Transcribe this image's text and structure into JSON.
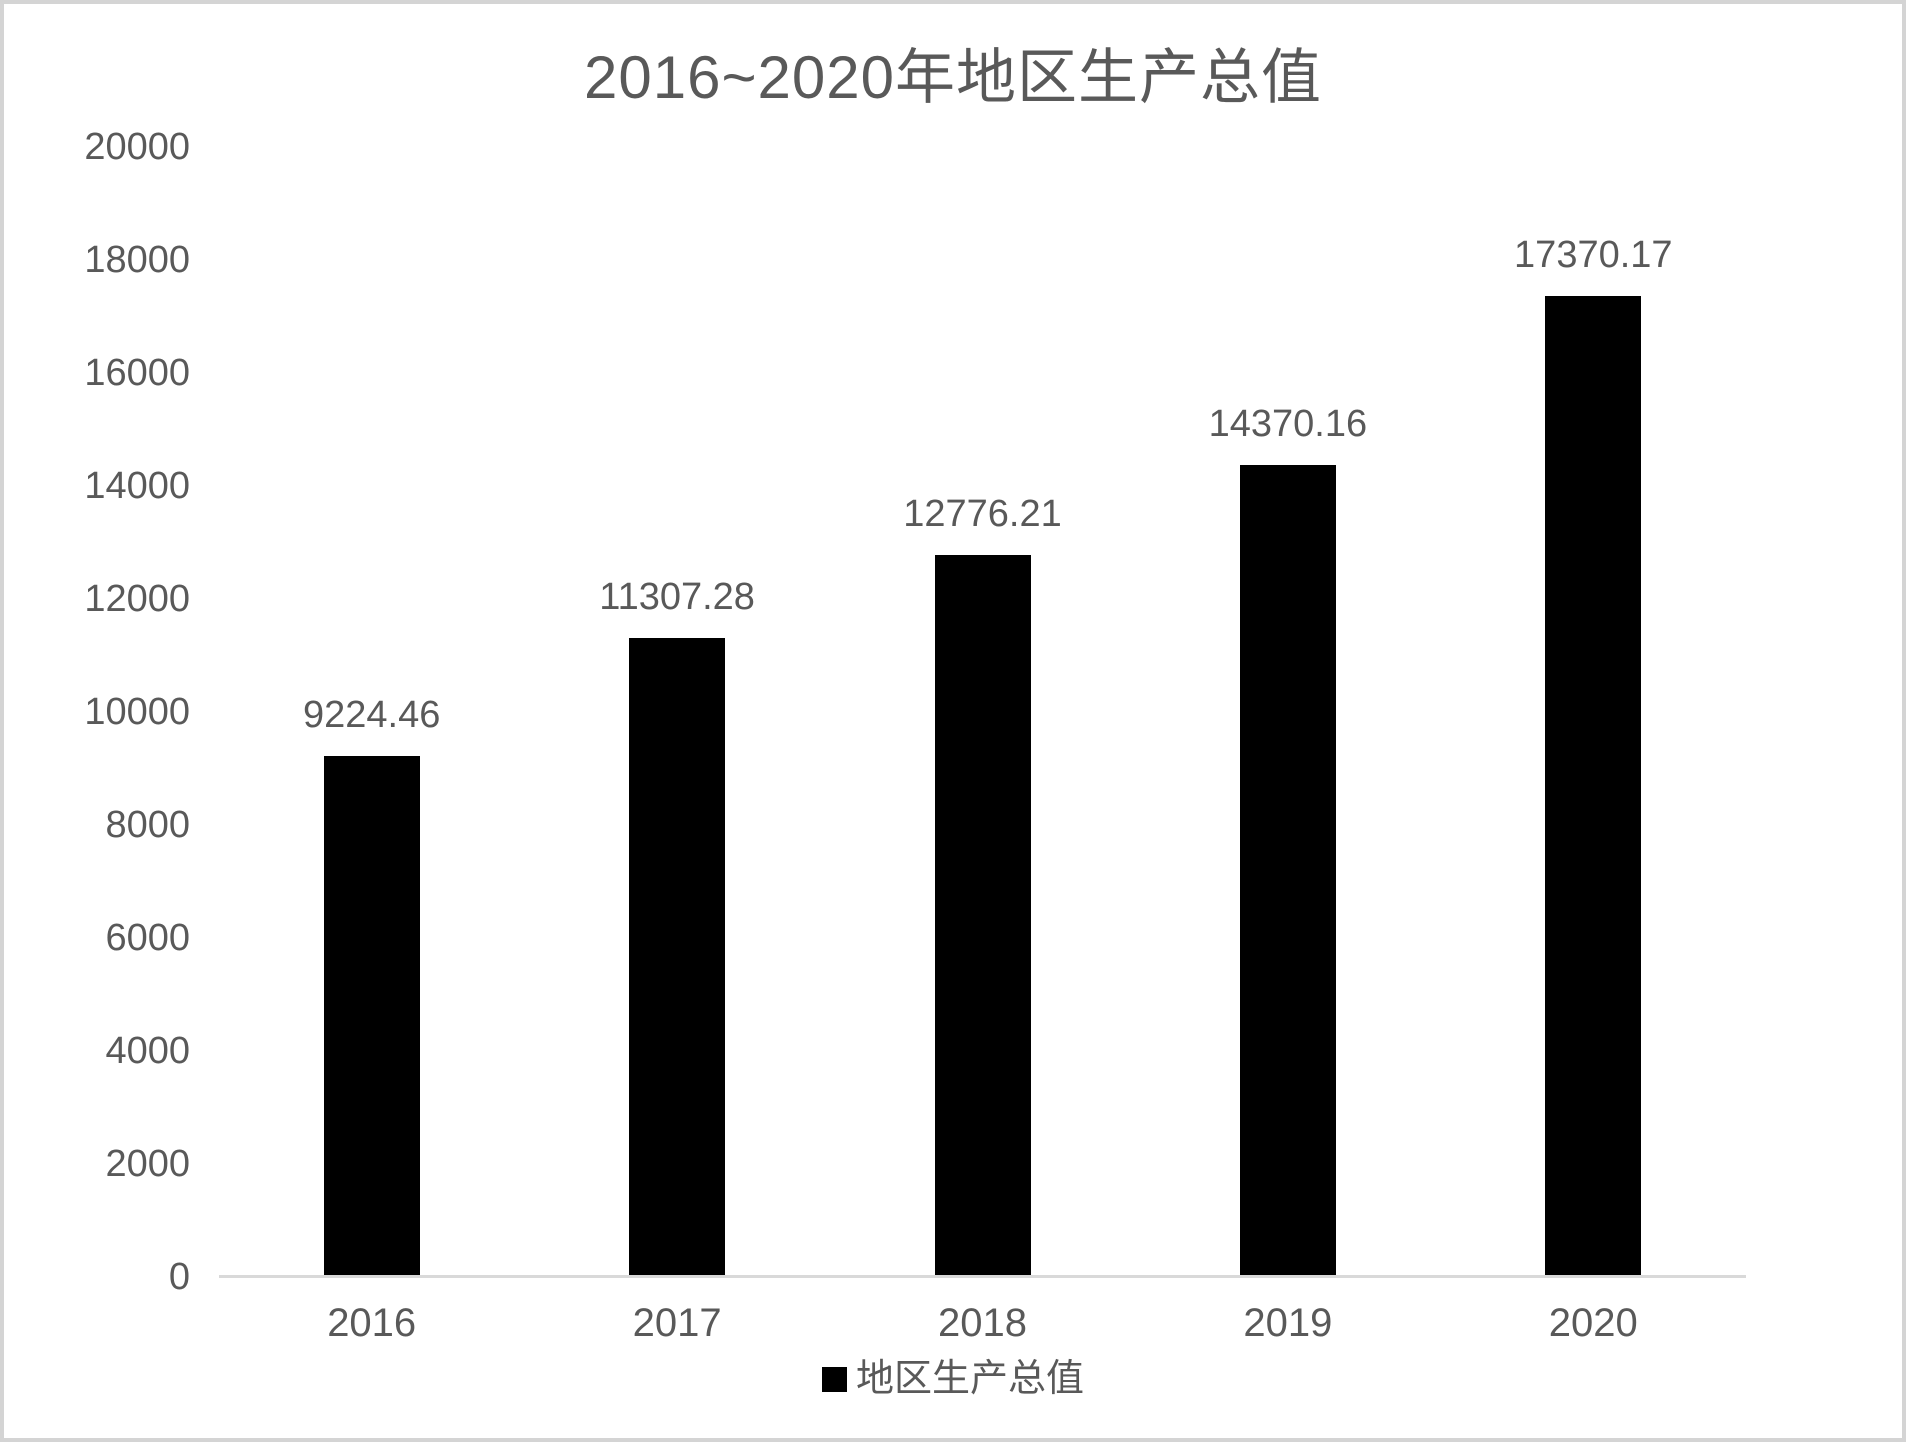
{
  "chart_data": {
    "type": "bar",
    "title": "2016~2020年地区生产总值",
    "categories": [
      "2016",
      "2017",
      "2018",
      "2019",
      "2020"
    ],
    "series": [
      {
        "name": "地区生产总值",
        "values": [
          9224.46,
          11307.28,
          12776.21,
          14370.16,
          17370.17
        ]
      }
    ],
    "data_labels": [
      "9224.46",
      "11307.28",
      "12776.21",
      "14370.16",
      "17370.17"
    ],
    "xlabel": "",
    "ylabel": "",
    "ylim": [
      0,
      20000
    ],
    "y_tick_step": 2000,
    "y_ticks": [
      "20000",
      "18000",
      "16000",
      "14000",
      "12000",
      "10000",
      "8000",
      "6000",
      "4000",
      "2000",
      "0"
    ],
    "grid": false,
    "legend_position": "bottom",
    "legend_marker": "square",
    "bar_color": "#000000",
    "text_color": "#595959",
    "axis_line_color": "#d9d9d9",
    "frame_color": "#d4d4d4",
    "background_color": "#ffffff"
  }
}
